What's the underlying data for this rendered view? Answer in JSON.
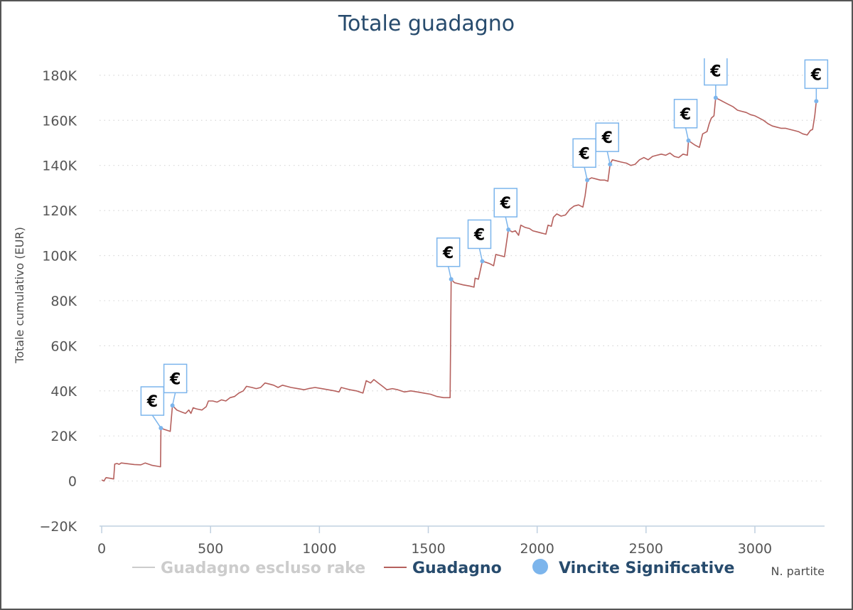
{
  "chart_data": {
    "type": "line",
    "title": "Totale guadagno",
    "ylabel": "Totale cumulativo (EUR)",
    "xlabel": "N. partite",
    "xlim": [
      -10,
      3320
    ],
    "ylim": [
      -20000,
      185000
    ],
    "x_ticks": [
      0,
      500,
      1000,
      1500,
      2000,
      2500,
      3000
    ],
    "x_tick_labels": [
      "0",
      "500",
      "1000",
      "1500",
      "2000",
      "2500",
      "3000"
    ],
    "y_ticks": [
      -20000,
      0,
      20000,
      40000,
      60000,
      80000,
      100000,
      120000,
      140000,
      160000,
      180000
    ],
    "y_tick_labels": [
      "−20K",
      "0",
      "20K",
      "40K",
      "60K",
      "80K",
      "100K",
      "120K",
      "140K",
      "160K",
      "180K"
    ],
    "grid": "horizontal dotted",
    "legend_position": "bottom-center",
    "series": [
      {
        "name": "Guadagno escluso rake",
        "visible": false,
        "color": "#cccccc",
        "points": []
      },
      {
        "name": "Guadagno",
        "visible": true,
        "color": "#b5605d",
        "points": [
          [
            0,
            500
          ],
          [
            10,
            0
          ],
          [
            20,
            1500
          ],
          [
            40,
            1200
          ],
          [
            55,
            900
          ],
          [
            60,
            7500
          ],
          [
            70,
            7800
          ],
          [
            80,
            7400
          ],
          [
            90,
            8000
          ],
          [
            110,
            7800
          ],
          [
            150,
            7300
          ],
          [
            180,
            7200
          ],
          [
            200,
            8000
          ],
          [
            230,
            7000
          ],
          [
            260,
            6500
          ],
          [
            270,
            6300
          ],
          [
            272,
            23500
          ],
          [
            285,
            23000
          ],
          [
            300,
            22500
          ],
          [
            315,
            22000
          ],
          [
            325,
            33500
          ],
          [
            345,
            31500
          ],
          [
            370,
            30500
          ],
          [
            385,
            30000
          ],
          [
            400,
            31500
          ],
          [
            410,
            30000
          ],
          [
            420,
            32500
          ],
          [
            435,
            32000
          ],
          [
            460,
            31500
          ],
          [
            480,
            33000
          ],
          [
            490,
            35500
          ],
          [
            510,
            35500
          ],
          [
            530,
            35000
          ],
          [
            550,
            36000
          ],
          [
            570,
            35500
          ],
          [
            590,
            37000
          ],
          [
            610,
            37500
          ],
          [
            630,
            39000
          ],
          [
            650,
            40000
          ],
          [
            665,
            42000
          ],
          [
            690,
            41500
          ],
          [
            710,
            41000
          ],
          [
            730,
            41500
          ],
          [
            750,
            43500
          ],
          [
            770,
            43000
          ],
          [
            790,
            42500
          ],
          [
            810,
            41500
          ],
          [
            830,
            42500
          ],
          [
            850,
            42000
          ],
          [
            870,
            41500
          ],
          [
            900,
            41000
          ],
          [
            930,
            40500
          ],
          [
            950,
            41000
          ],
          [
            980,
            41500
          ],
          [
            1010,
            41000
          ],
          [
            1040,
            40500
          ],
          [
            1070,
            40000
          ],
          [
            1090,
            39500
          ],
          [
            1100,
            41500
          ],
          [
            1120,
            41000
          ],
          [
            1140,
            40500
          ],
          [
            1170,
            40000
          ],
          [
            1200,
            39000
          ],
          [
            1215,
            44500
          ],
          [
            1235,
            43500
          ],
          [
            1250,
            45000
          ],
          [
            1270,
            43500
          ],
          [
            1290,
            42000
          ],
          [
            1310,
            40500
          ],
          [
            1335,
            41000
          ],
          [
            1360,
            40500
          ],
          [
            1390,
            39500
          ],
          [
            1420,
            40000
          ],
          [
            1450,
            39500
          ],
          [
            1480,
            39000
          ],
          [
            1510,
            38500
          ],
          [
            1540,
            37500
          ],
          [
            1570,
            37000
          ],
          [
            1600,
            37000
          ],
          [
            1605,
            89500
          ],
          [
            1620,
            88000
          ],
          [
            1640,
            87500
          ],
          [
            1660,
            87000
          ],
          [
            1690,
            86500
          ],
          [
            1710,
            86000
          ],
          [
            1715,
            90000
          ],
          [
            1730,
            89500
          ],
          [
            1748,
            97500
          ],
          [
            1765,
            97000
          ],
          [
            1780,
            96500
          ],
          [
            1800,
            95500
          ],
          [
            1810,
            100500
          ],
          [
            1830,
            100000
          ],
          [
            1850,
            99500
          ],
          [
            1868,
            111500
          ],
          [
            1885,
            110500
          ],
          [
            1900,
            111000
          ],
          [
            1915,
            109000
          ],
          [
            1925,
            113500
          ],
          [
            1945,
            112500
          ],
          [
            1965,
            112000
          ],
          [
            1980,
            111000
          ],
          [
            2000,
            110500
          ],
          [
            2020,
            110000
          ],
          [
            2040,
            109500
          ],
          [
            2050,
            113500
          ],
          [
            2065,
            113000
          ],
          [
            2075,
            117000
          ],
          [
            2090,
            118500
          ],
          [
            2110,
            117500
          ],
          [
            2130,
            118000
          ],
          [
            2150,
            120500
          ],
          [
            2170,
            122000
          ],
          [
            2190,
            122500
          ],
          [
            2210,
            121500
          ],
          [
            2220,
            126500
          ],
          [
            2230,
            133500
          ],
          [
            2250,
            134500
          ],
          [
            2270,
            134000
          ],
          [
            2290,
            133500
          ],
          [
            2310,
            133500
          ],
          [
            2325,
            133000
          ],
          [
            2335,
            140500
          ],
          [
            2345,
            142500
          ],
          [
            2365,
            142000
          ],
          [
            2385,
            141500
          ],
          [
            2410,
            141000
          ],
          [
            2430,
            140000
          ],
          [
            2450,
            140500
          ],
          [
            2470,
            142500
          ],
          [
            2490,
            143500
          ],
          [
            2510,
            142500
          ],
          [
            2530,
            144000
          ],
          [
            2550,
            144500
          ],
          [
            2570,
            145000
          ],
          [
            2590,
            144500
          ],
          [
            2610,
            145500
          ],
          [
            2630,
            144000
          ],
          [
            2650,
            143500
          ],
          [
            2670,
            145000
          ],
          [
            2690,
            144500
          ],
          [
            2695,
            151000
          ],
          [
            2710,
            150000
          ],
          [
            2725,
            149000
          ],
          [
            2745,
            148000
          ],
          [
            2760,
            154000
          ],
          [
            2780,
            155000
          ],
          [
            2790,
            158500
          ],
          [
            2800,
            161000
          ],
          [
            2812,
            162000
          ],
          [
            2820,
            170000
          ],
          [
            2840,
            169000
          ],
          [
            2860,
            168000
          ],
          [
            2880,
            167000
          ],
          [
            2900,
            166000
          ],
          [
            2920,
            164500
          ],
          [
            2940,
            164000
          ],
          [
            2960,
            163500
          ],
          [
            2980,
            162500
          ],
          [
            3000,
            162000
          ],
          [
            3020,
            161000
          ],
          [
            3040,
            160000
          ],
          [
            3060,
            158500
          ],
          [
            3080,
            157500
          ],
          [
            3100,
            157000
          ],
          [
            3120,
            156500
          ],
          [
            3140,
            156500
          ],
          [
            3160,
            156000
          ],
          [
            3180,
            155500
          ],
          [
            3200,
            155000
          ],
          [
            3220,
            154000
          ],
          [
            3240,
            153500
          ],
          [
            3255,
            155500
          ],
          [
            3265,
            156000
          ],
          [
            3275,
            162000
          ],
          [
            3282,
            168500
          ]
        ]
      },
      {
        "name": "Vincite Significative",
        "visible": true,
        "type": "flag",
        "color": "#7cb5ec",
        "flag_label": "€",
        "points": [
          [
            272,
            23500
          ],
          [
            325,
            33500
          ],
          [
            1605,
            89500
          ],
          [
            1748,
            97500
          ],
          [
            1868,
            111500
          ],
          [
            2230,
            133500
          ],
          [
            2335,
            140500
          ],
          [
            2695,
            151000
          ],
          [
            2820,
            170000
          ],
          [
            3282,
            168500
          ]
        ]
      }
    ]
  }
}
